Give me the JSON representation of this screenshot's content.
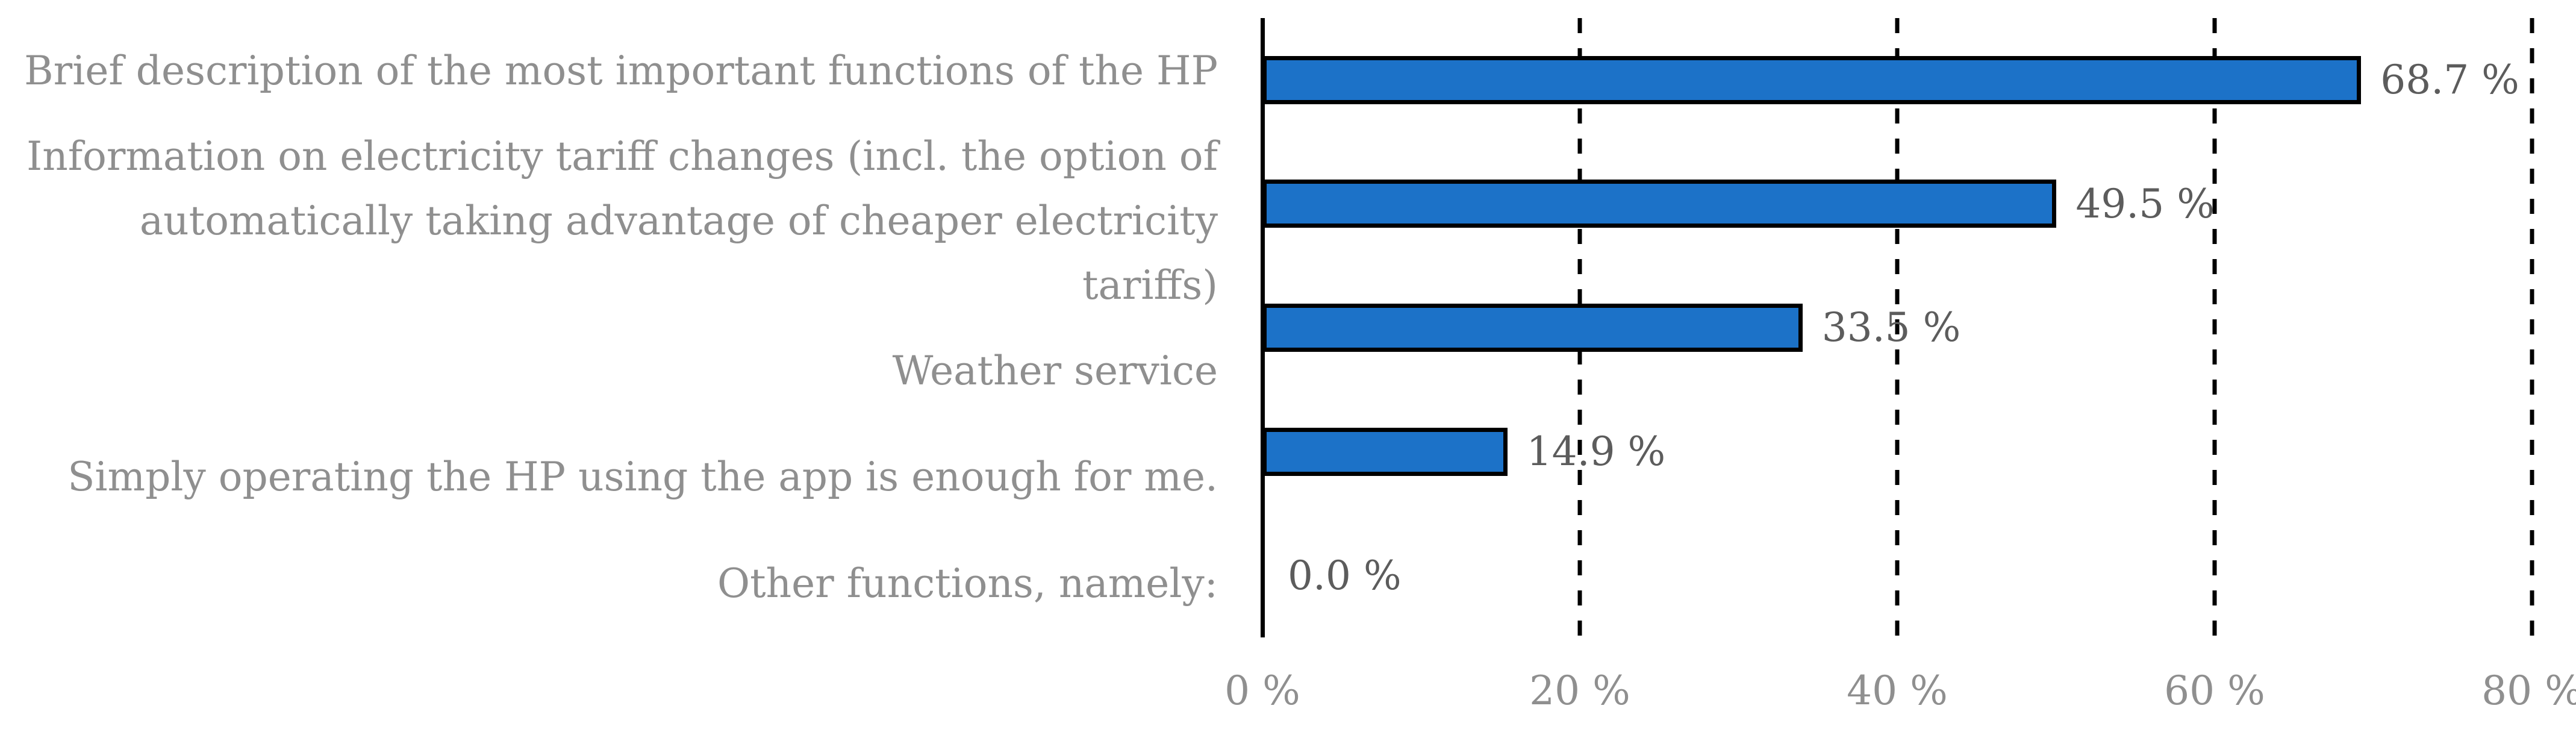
{
  "chart_data": {
    "type": "bar",
    "orientation": "horizontal",
    "title": "",
    "xlabel": "",
    "ylabel": "",
    "xlim": [
      0,
      80
    ],
    "grid": "dashed vertical gridlines at each tick, solid axis at 0",
    "legend": "none",
    "bar_color": "#1c72c8",
    "bar_border_color": "#000000",
    "category_label_color": "#8f8f8f",
    "value_label_color": "#5c5c5c",
    "categories": [
      "Brief description of the most important functions of the HP",
      "Information on electricity tariff changes (incl. the option of\nautomatically taking advantage of cheaper electricity tariffs)",
      "Weather service",
      "Simply operating the HP using the app is enough for me.",
      "Other functions, namely:"
    ],
    "values": [
      68.7,
      49.5,
      33.5,
      14.9,
      0.0
    ],
    "value_labels": [
      "68.7 %",
      "49.5 %",
      "33.5 %",
      "14.9 %",
      "0.0 %"
    ],
    "x_tick_labels": [
      "0 %",
      "20 %",
      "40 %",
      "60 %",
      "80 %"
    ],
    "x_tick_values": [
      0,
      20,
      40,
      60,
      80
    ]
  }
}
